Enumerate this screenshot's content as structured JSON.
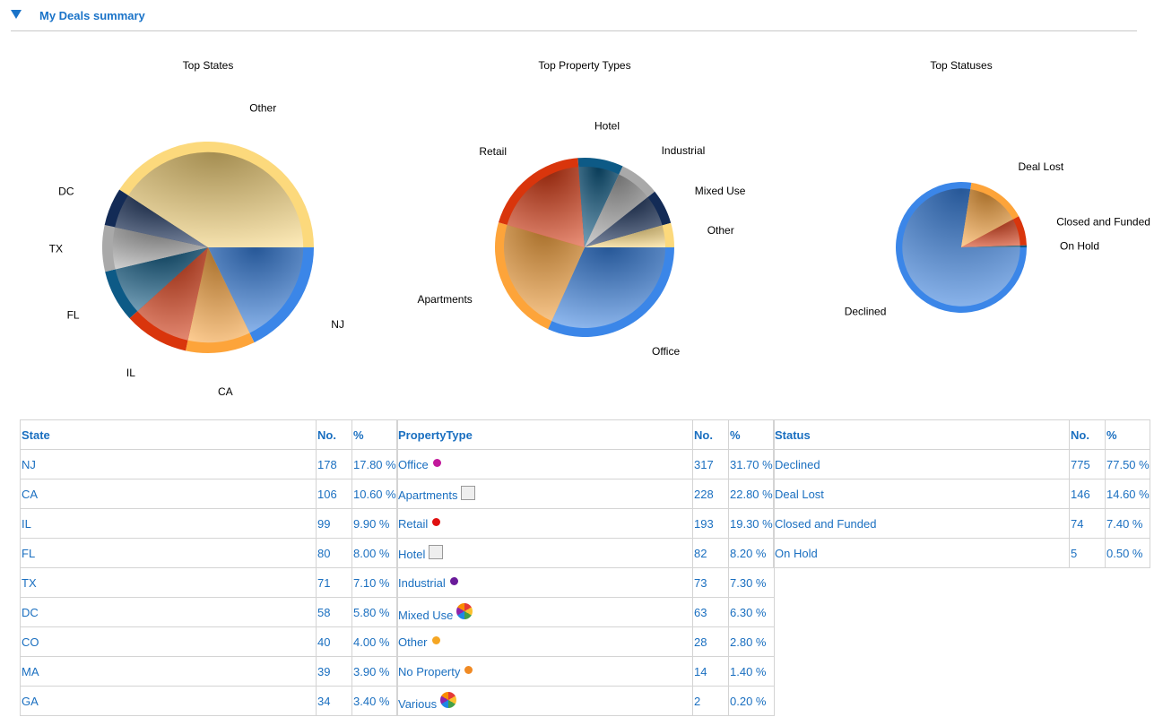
{
  "section": {
    "title": "My Deals summary"
  },
  "chart_data": [
    {
      "type": "pie",
      "title": "Top States",
      "slices": [
        {
          "label": "NJ",
          "value": 17.8,
          "color": "#3b86e8"
        },
        {
          "label": "CA",
          "value": 10.6,
          "color": "#fda43a"
        },
        {
          "label": "IL",
          "value": 9.9,
          "color": "#d9350c"
        },
        {
          "label": "FL",
          "value": 8.0,
          "color": "#0d5a86"
        },
        {
          "label": "TX",
          "value": 7.1,
          "color": "#a9a9a9"
        },
        {
          "label": "DC",
          "value": 5.8,
          "color": "#132b56"
        },
        {
          "label": "Other",
          "value": 40.8,
          "color": "#fcd97c"
        }
      ]
    },
    {
      "type": "pie",
      "title": "Top Property Types",
      "slices": [
        {
          "label": "Office",
          "value": 31.7,
          "color": "#3b86e8"
        },
        {
          "label": "Apartments",
          "value": 22.8,
          "color": "#fda43a"
        },
        {
          "label": "Retail",
          "value": 19.3,
          "color": "#d9350c"
        },
        {
          "label": "Hotel",
          "value": 8.2,
          "color": "#0d5a86"
        },
        {
          "label": "Industrial",
          "value": 7.3,
          "color": "#a9a9a9"
        },
        {
          "label": "Mixed Use",
          "value": 6.3,
          "color": "#132b56"
        },
        {
          "label": "Other",
          "value": 4.4,
          "color": "#fcd97c"
        }
      ]
    },
    {
      "type": "pie",
      "title": "Top Statuses",
      "slices": [
        {
          "label": "Declined",
          "value": 77.5,
          "color": "#3b86e8"
        },
        {
          "label": "Deal Lost",
          "value": 14.6,
          "color": "#fda43a"
        },
        {
          "label": "Closed and Funded",
          "value": 7.4,
          "color": "#d9350c"
        },
        {
          "label": "On Hold",
          "value": 0.5,
          "color": "#0d5a86"
        }
      ]
    }
  ],
  "tables": {
    "states": {
      "headers": [
        "State",
        "No.",
        "%"
      ],
      "rows": [
        [
          "NJ",
          "178",
          "17.80 %"
        ],
        [
          "CA",
          "106",
          "10.60 %"
        ],
        [
          "IL",
          "99",
          "9.90 %"
        ],
        [
          "FL",
          "80",
          "8.00 %"
        ],
        [
          "TX",
          "71",
          "7.10 %"
        ],
        [
          "DC",
          "58",
          "5.80 %"
        ],
        [
          "CO",
          "40",
          "4.00 %"
        ],
        [
          "MA",
          "39",
          "3.90 %"
        ],
        [
          "GA",
          "34",
          "3.40 %"
        ]
      ]
    },
    "property": {
      "headers": [
        "PropertyType",
        "No.",
        "%"
      ],
      "rows": [
        {
          "name": "Office",
          "no": "317",
          "pct": "31.70 %",
          "icon": "dot",
          "color": "#c2189b",
          "icon_name": "magenta-dot-icon"
        },
        {
          "name": "Apartments",
          "no": "228",
          "pct": "22.80 %",
          "icon": "broken",
          "icon_name": "broken-image-icon"
        },
        {
          "name": "Retail",
          "no": "193",
          "pct": "19.30 %",
          "icon": "dot",
          "color": "#e01010",
          "icon_name": "red-dot-icon"
        },
        {
          "name": "Hotel",
          "no": "82",
          "pct": "8.20 %",
          "icon": "broken",
          "icon_name": "broken-image-icon"
        },
        {
          "name": "Industrial",
          "no": "73",
          "pct": "7.30 %",
          "icon": "dot",
          "color": "#6a1b9a",
          "icon_name": "purple-dot-icon"
        },
        {
          "name": "Mixed Use",
          "no": "63",
          "pct": "6.30 %",
          "icon": "wheel",
          "icon_name": "color-wheel-icon"
        },
        {
          "name": "Other",
          "no": "28",
          "pct": "2.80 %",
          "icon": "dot",
          "color": "#f5a623",
          "icon_name": "orange-dot-icon"
        },
        {
          "name": "No Property",
          "no": "14",
          "pct": "1.40 %",
          "icon": "dot",
          "color": "#f08a24",
          "icon_name": "orange-dot-icon"
        },
        {
          "name": "Various",
          "no": "2",
          "pct": "0.20 %",
          "icon": "wheel",
          "icon_name": "color-wheel-icon"
        }
      ]
    },
    "status": {
      "headers": [
        "Status",
        "No.",
        "%"
      ],
      "rows": [
        [
          "Declined",
          "775",
          "77.50 %"
        ],
        [
          "Deal Lost",
          "146",
          "14.60 %"
        ],
        [
          "Closed and Funded",
          "74",
          "7.40 %"
        ],
        [
          "On Hold",
          "5",
          "0.50 %"
        ]
      ]
    }
  }
}
